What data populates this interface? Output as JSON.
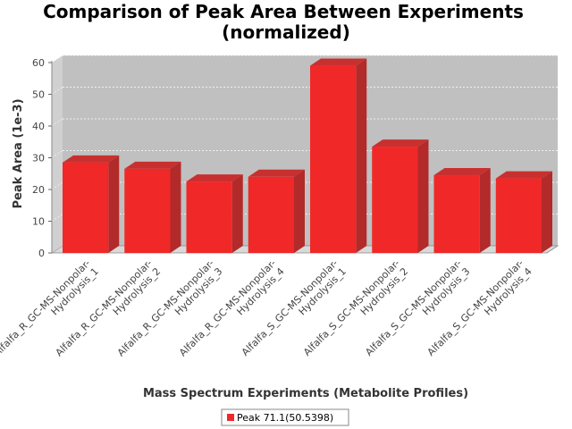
{
  "chart_data": {
    "type": "bar",
    "title_lines": [
      "Comparison of Peak Area Between Experiments",
      "(normalized)"
    ],
    "xlabel": "Mass Spectrum Experiments (Metabolite Profiles)",
    "ylabel": "Peak Area (1e-3)",
    "ylim": [
      0,
      60
    ],
    "yticks": [
      0,
      10,
      20,
      30,
      40,
      50,
      60
    ],
    "grid": true,
    "legend_position": "bottom",
    "categories": [
      [
        "Alfalfa_R_GC-MS-Nonpolar-",
        "Hydrolysis_1"
      ],
      [
        "Alfalfa_R_GC-MS-Nonpolar-",
        "Hydrolysis_2"
      ],
      [
        "Alfalfa_R_GC-MS-Nonpolar-",
        "Hydrolysis_3"
      ],
      [
        "Alfalfa_R_GC-MS-Nonpolar-",
        "Hydrolysis_4"
      ],
      [
        "Alfalfa_S_GC-MS-Nonpolar-",
        "Hydrolysis_1"
      ],
      [
        "Alfalfa_S_GC-MS-Nonpolar-",
        "Hydrolysis_2"
      ],
      [
        "Alfalfa_S_GC-MS-Nonpolar-",
        "Hydrolysis_3"
      ],
      [
        "Alfalfa_S_GC-MS-Nonpolar-",
        "Hydrolysis_4"
      ]
    ],
    "series": [
      {
        "name": "Peak 71.1(50.5398)",
        "values": [
          28.5,
          26.5,
          22.5,
          24,
          59,
          33.5,
          24.5,
          23.5
        ]
      }
    ],
    "colors": {
      "bar_front": "#f02828",
      "bar_side": "#b22a2a",
      "bar_top": "#c83030",
      "plot_back": "#c0c0c0",
      "plot_floor": "#d8d8d8",
      "gridline": "#ffffff"
    }
  }
}
